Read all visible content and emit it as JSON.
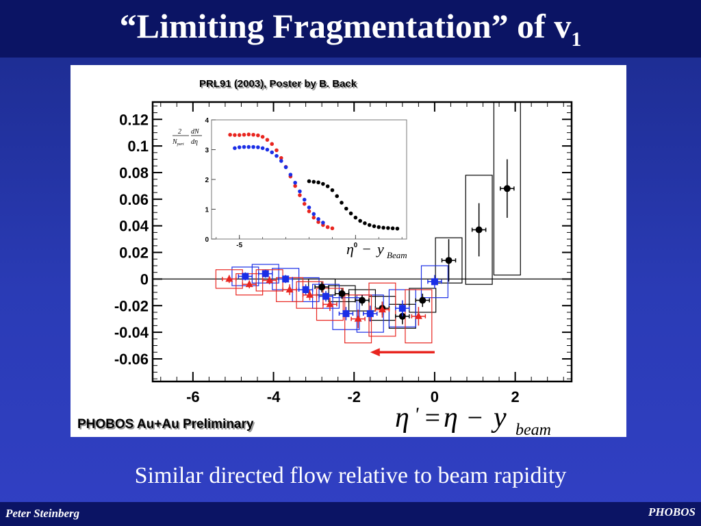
{
  "slide": {
    "title": "“Limiting Fragmentation” of v",
    "title_sub": "1",
    "caption": "Similar directed flow relative to beam rapidity",
    "footer_left": "Peter Steinberg",
    "footer_right": "PHOBOS"
  },
  "chart_data": [
    {
      "type": "scatter",
      "title": "",
      "xlim": [
        -7.0,
        3.4
      ],
      "ylim": [
        -0.077,
        0.133
      ],
      "xticks": [
        -6,
        -4,
        -2,
        0,
        2
      ],
      "yticks": [
        0.12,
        0.1,
        0.08,
        0.06,
        0.04,
        0.02,
        0,
        -0.02,
        -0.04,
        -0.06
      ],
      "zero_line": true,
      "annotations": {
        "reference": "PRL91 (2003), Poster by B. Back",
        "label": "PHOBOS Au+Au Preliminary",
        "formula_lhs": "η",
        "formula_prime": "'",
        "formula_eq": "=",
        "formula_rhs": "η",
        "formula_minus": "−",
        "formula_y": "y",
        "formula_sub": "beam",
        "arrow": {
          "from_x": 0.0,
          "to_x": -1.6,
          "y": -0.055,
          "color": "#e8251f"
        }
      },
      "series": [
        {
          "marker": "circle",
          "color": "#000000",
          "x": [
            -2.8,
            -2.3,
            -1.8,
            -1.3,
            -0.8,
            -0.3,
            0.35,
            1.1,
            1.8
          ],
          "y": [
            -0.006,
            -0.011,
            -0.016,
            -0.022,
            -0.028,
            -0.016,
            0.014,
            0.037,
            0.068
          ],
          "yerr": [
            0.004,
            0.004,
            0.004,
            0.005,
            0.006,
            0.005,
            0.016,
            0.02,
            0.022
          ],
          "sys": [
            0.006,
            0.006,
            0.008,
            0.009,
            0.009,
            0.009,
            0.017,
            0.041,
            0.065
          ]
        },
        {
          "marker": "square",
          "color": "#1a2ee6",
          "x": [
            -4.7,
            -4.2,
            -3.7,
            -3.2,
            -2.7,
            -2.2,
            -1.6,
            -0.8,
            0.0
          ],
          "y": [
            0.002,
            0.004,
            0.0,
            -0.008,
            -0.013,
            -0.026,
            -0.026,
            -0.022,
            -0.002
          ],
          "yerr": [
            0.003,
            0.003,
            0.003,
            0.004,
            0.004,
            0.005,
            0.006,
            0.006,
            0.005
          ],
          "sys": [
            0.007,
            0.007,
            0.008,
            0.009,
            0.009,
            0.012,
            0.014,
            0.014,
            0.012
          ]
        },
        {
          "marker": "triangle",
          "color": "#e8251f",
          "x": [
            -5.1,
            -4.6,
            -4.1,
            -3.6,
            -3.1,
            -2.6,
            -1.9,
            -1.3,
            -0.4
          ],
          "y": [
            0.0,
            -0.004,
            -0.001,
            -0.008,
            -0.012,
            -0.019,
            -0.03,
            -0.023,
            -0.028
          ],
          "yerr": [
            0.003,
            0.003,
            0.003,
            0.004,
            0.004,
            0.005,
            0.007,
            0.006,
            0.007
          ],
          "sys": [
            0.007,
            0.008,
            0.008,
            0.009,
            0.01,
            0.012,
            0.018,
            0.02,
            0.02
          ]
        }
      ]
    },
    {
      "type": "scatter",
      "role": "inset",
      "xlim": [
        -6.2,
        2.2
      ],
      "ylim": [
        0,
        4
      ],
      "xticks": [
        -5,
        0
      ],
      "yticks": [
        0,
        1,
        2,
        3,
        4
      ],
      "ylabel_num": "2",
      "ylabel_den": "N",
      "ylabel_den_sub": "part",
      "ylabel_dn": "dN",
      "ylabel_deta": "dη",
      "xlabel_eta": "η",
      "xlabel_minus": "−",
      "xlabel_y": "y",
      "xlabel_sub": "Beam",
      "series": [
        {
          "marker": "circle",
          "color": "#e8251f",
          "x": [
            -5.4,
            -5.2,
            -5.0,
            -4.8,
            -4.6,
            -4.4,
            -4.2,
            -4.0,
            -3.8,
            -3.6,
            -3.4,
            -3.2,
            -3.0,
            -2.8,
            -2.6,
            -2.4,
            -2.2,
            -2.0,
            -1.8,
            -1.6,
            -1.4,
            -1.2,
            -1.0
          ],
          "y": [
            3.5,
            3.49,
            3.49,
            3.5,
            3.51,
            3.5,
            3.48,
            3.43,
            3.33,
            3.19,
            2.98,
            2.72,
            2.42,
            2.1,
            1.78,
            1.47,
            1.18,
            0.93,
            0.72,
            0.57,
            0.47,
            0.4,
            0.36
          ]
        },
        {
          "marker": "circle",
          "color": "#1a2ee6",
          "x": [
            -5.2,
            -5.0,
            -4.8,
            -4.6,
            -4.4,
            -4.2,
            -4.0,
            -3.8,
            -3.6,
            -3.4,
            -3.2,
            -3.0,
            -2.8,
            -2.6,
            -2.4,
            -2.2,
            -2.0,
            -1.8,
            -1.6,
            -1.4
          ],
          "y": [
            3.05,
            3.08,
            3.09,
            3.09,
            3.09,
            3.08,
            3.05,
            3.0,
            2.91,
            2.79,
            2.62,
            2.41,
            2.16,
            1.89,
            1.6,
            1.32,
            1.06,
            0.84,
            0.67,
            0.55
          ]
        },
        {
          "marker": "circle",
          "color": "#000000",
          "x": [
            -2.0,
            -1.8,
            -1.6,
            -1.4,
            -1.2,
            -1.0,
            -0.8,
            -0.6,
            -0.4,
            -0.2,
            0.0,
            0.2,
            0.4,
            0.6,
            0.8,
            1.0,
            1.2,
            1.4,
            1.6,
            1.8
          ],
          "y": [
            1.94,
            1.92,
            1.9,
            1.85,
            1.77,
            1.64,
            1.44,
            1.22,
            1.02,
            0.86,
            0.72,
            0.61,
            0.53,
            0.47,
            0.43,
            0.4,
            0.38,
            0.37,
            0.36,
            0.35
          ]
        }
      ]
    }
  ]
}
